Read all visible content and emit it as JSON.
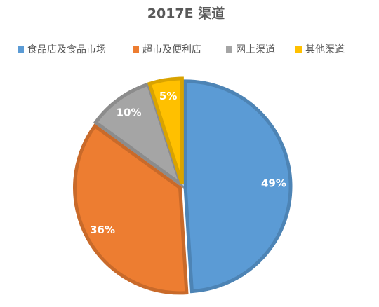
{
  "chart_data": {
    "type": "pie",
    "title": "2017E 渠道",
    "categories": [
      "食品店及食品市场",
      "超市及便利店",
      "网上渠道",
      "其他渠道"
    ],
    "values": [
      49,
      36,
      10,
      5
    ],
    "value_labels": [
      "49%",
      "36%",
      "10%",
      "5%"
    ],
    "colors": [
      "#5b9bd5",
      "#ed7d31",
      "#a5a5a5",
      "#ffc000"
    ],
    "legend": "top"
  }
}
